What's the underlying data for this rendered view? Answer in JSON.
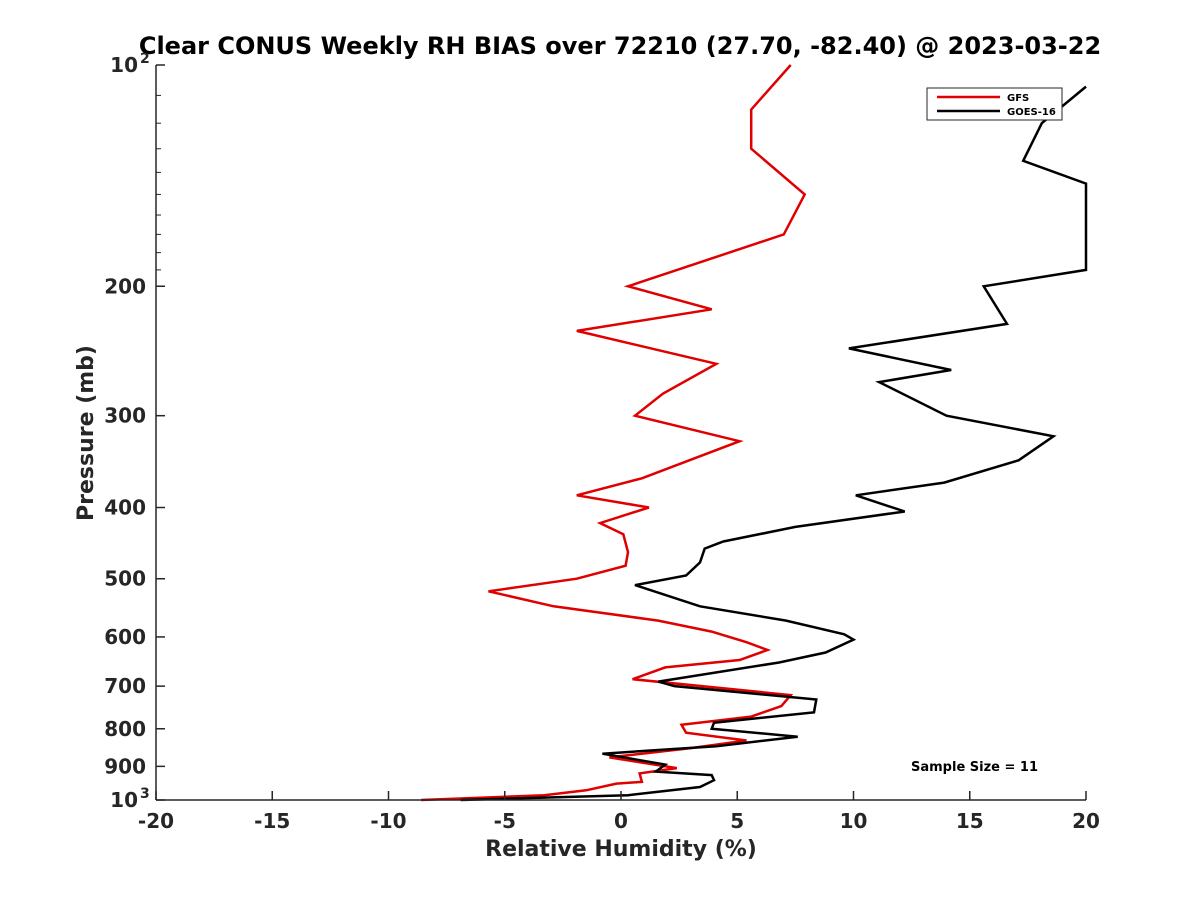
{
  "chart_data": {
    "type": "line",
    "title": "Clear CONUS Weekly RH BIAS over 72210 (27.70, -82.40) @ 2023-03-22",
    "xlabel": "Relative Humidity (%)",
    "ylabel": "Pressure (mb)",
    "xlim": [
      -20,
      20
    ],
    "ylim": [
      100,
      1000
    ],
    "yscale": "log",
    "yreversed": true,
    "grid": false,
    "legend_position": "top-right",
    "x_ticks": [
      "-20",
      "-15",
      "-10",
      "-5",
      "0",
      "5",
      "10",
      "15",
      "20"
    ],
    "y_ticks": [
      {
        "value": 100,
        "label": "10",
        "sup": "2"
      },
      {
        "value": 200,
        "label": "200"
      },
      {
        "value": 300,
        "label": "300"
      },
      {
        "value": 400,
        "label": "400"
      },
      {
        "value": 500,
        "label": "500"
      },
      {
        "value": 600,
        "label": "600"
      },
      {
        "value": 700,
        "label": "700"
      },
      {
        "value": 800,
        "label": "800"
      },
      {
        "value": 900,
        "label": "900"
      },
      {
        "value": 1000,
        "label": "10",
        "sup": "3"
      }
    ],
    "annotation": "Sample Size = 11",
    "series": [
      {
        "name": "GFS",
        "color": "#e00000",
        "points": [
          [
            7.3,
            100
          ],
          [
            5.6,
            115
          ],
          [
            5.6,
            130
          ],
          [
            7.9,
            150
          ],
          [
            7.0,
            170
          ],
          [
            0.3,
            200
          ],
          [
            3.9,
            215
          ],
          [
            -1.9,
            230
          ],
          [
            4.1,
            255
          ],
          [
            1.8,
            280
          ],
          [
            0.6,
            300
          ],
          [
            5.1,
            325
          ],
          [
            0.9,
            365
          ],
          [
            -1.9,
            385
          ],
          [
            1.2,
            400
          ],
          [
            -0.9,
            420
          ],
          [
            0.1,
            435
          ],
          [
            0.3,
            460
          ],
          [
            0.2,
            480
          ],
          [
            -1.9,
            500
          ],
          [
            -5.7,
            520
          ],
          [
            -2.9,
            545
          ],
          [
            1.6,
            570
          ],
          [
            3.9,
            590
          ],
          [
            5.4,
            610
          ],
          [
            6.3,
            625
          ],
          [
            5.1,
            645
          ],
          [
            1.9,
            660
          ],
          [
            0.5,
            685
          ],
          [
            7.3,
            720
          ],
          [
            6.9,
            745
          ],
          [
            5.6,
            770
          ],
          [
            2.6,
            790
          ],
          [
            2.8,
            810
          ],
          [
            5.4,
            830
          ],
          [
            3.0,
            850
          ],
          [
            -0.5,
            875
          ],
          [
            2.4,
            905
          ],
          [
            0.8,
            920
          ],
          [
            0.9,
            945
          ],
          [
            -0.2,
            950
          ],
          [
            -1.5,
            970
          ],
          [
            -3.3,
            985
          ],
          [
            -8.6,
            1000
          ]
        ]
      },
      {
        "name": "GOES-16",
        "color": "#000000",
        "points": [
          [
            20.0,
            107
          ],
          [
            18.1,
            120
          ],
          [
            17.3,
            135
          ],
          [
            20.0,
            145
          ],
          [
            20.0,
            190
          ],
          [
            15.6,
            200
          ],
          [
            16.6,
            225
          ],
          [
            9.8,
            243
          ],
          [
            14.2,
            260
          ],
          [
            11.1,
            270
          ],
          [
            14.0,
            300
          ],
          [
            18.6,
            320
          ],
          [
            17.1,
            345
          ],
          [
            13.9,
            370
          ],
          [
            10.1,
            385
          ],
          [
            12.2,
            405
          ],
          [
            7.5,
            425
          ],
          [
            4.4,
            445
          ],
          [
            3.6,
            455
          ],
          [
            3.4,
            475
          ],
          [
            2.8,
            495
          ],
          [
            0.6,
            510
          ],
          [
            3.4,
            545
          ],
          [
            7.1,
            570
          ],
          [
            9.6,
            595
          ],
          [
            10.0,
            605
          ],
          [
            8.8,
            630
          ],
          [
            6.8,
            650
          ],
          [
            1.6,
            690
          ],
          [
            2.3,
            700
          ],
          [
            8.4,
            730
          ],
          [
            8.3,
            760
          ],
          [
            4.0,
            785
          ],
          [
            3.9,
            800
          ],
          [
            7.6,
            820
          ],
          [
            4.1,
            845
          ],
          [
            -0.8,
            865
          ],
          [
            1.9,
            895
          ],
          [
            1.5,
            915
          ],
          [
            3.9,
            925
          ],
          [
            4.0,
            940
          ],
          [
            3.4,
            960
          ],
          [
            0.3,
            985
          ],
          [
            -6.9,
            1000
          ]
        ]
      }
    ]
  }
}
